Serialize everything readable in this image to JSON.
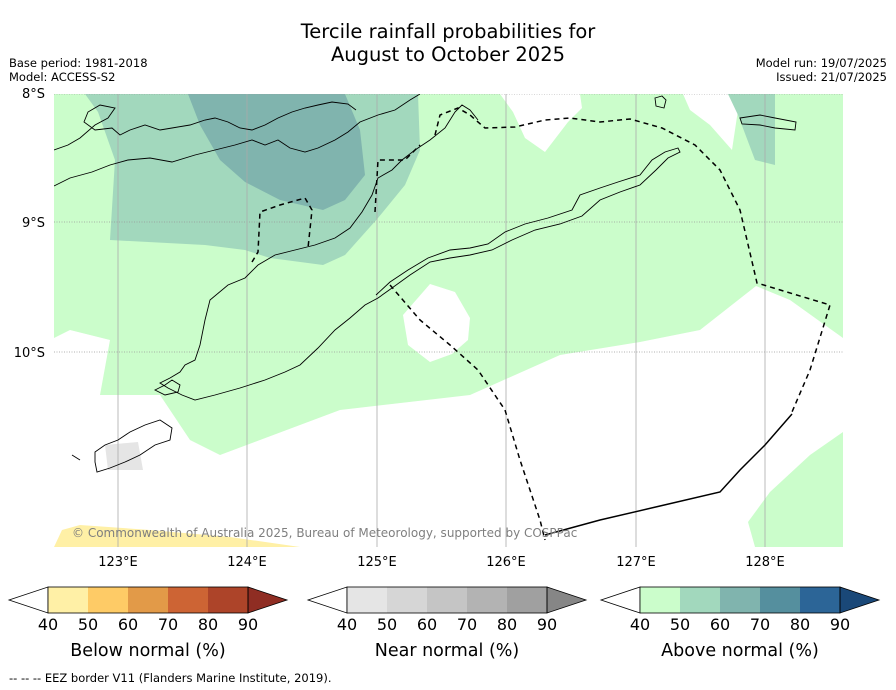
{
  "title_line1": "Tercile rainfall probabilities for",
  "title_line2": "August to October 2025",
  "base_period": "Base period: 1981-2018",
  "model": "Model: ACCESS-S2",
  "model_run": "Model run: 19/07/2025",
  "issued": "Issued: 21/07/2025",
  "lat_labels": [
    "8°S",
    "9°S",
    "10°S"
  ],
  "lon_labels": [
    "123°E",
    "124°E",
    "125°E",
    "126°E",
    "127°E",
    "128°E"
  ],
  "copyright": "© Commonwealth of Australia 2025, Bureau of Meteorology, supported by COSPPac",
  "colorbars": [
    {
      "title": "Below normal (%)",
      "ticks": [
        "40",
        "50",
        "60",
        "70",
        "80",
        "90"
      ],
      "colors": [
        "#ffffff",
        "#fff0a6",
        "#fecb66",
        "#e29a48",
        "#cd6434",
        "#ad4429",
        "#8f2d23"
      ]
    },
    {
      "title": "Near normal (%)",
      "ticks": [
        "40",
        "50",
        "60",
        "70",
        "80",
        "90"
      ],
      "colors": [
        "#ffffff",
        "#e5e5e5",
        "#d6d6d6",
        "#c5c5c5",
        "#b3b3b3",
        "#a0a0a0",
        "#868686"
      ]
    },
    {
      "title": "Above normal (%)",
      "ticks": [
        "40",
        "50",
        "60",
        "70",
        "80",
        "90"
      ],
      "colors": [
        "#ffffff",
        "#cbfdcb",
        "#a2d8bd",
        "#80b4ae",
        "#558f9e",
        "#2c6597",
        "#1a4878"
      ]
    }
  ],
  "footnote": "--  --  -- EEZ border V11 (Flanders Marine Institute, 2019)."
}
